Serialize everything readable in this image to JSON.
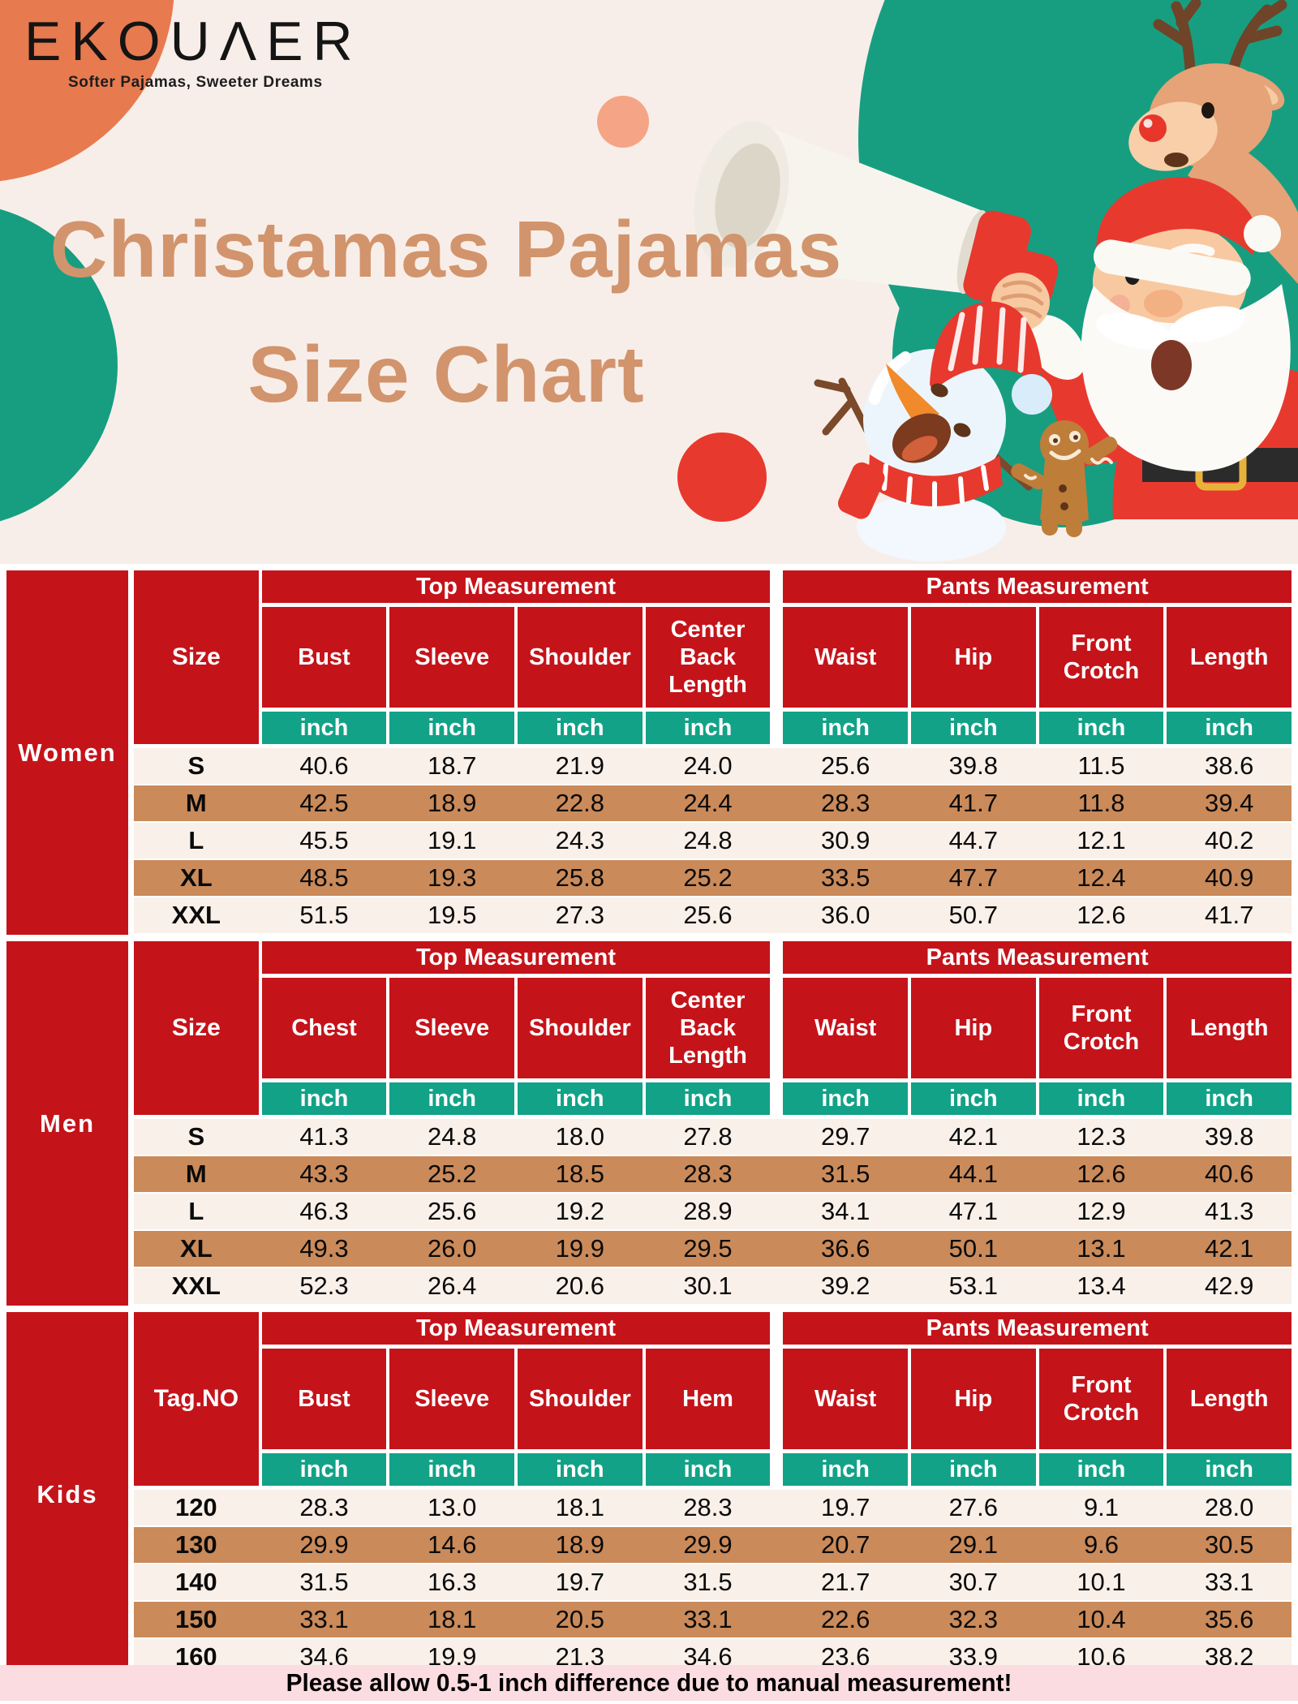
{
  "brand": {
    "logo": "EKOUΛER",
    "tagline": "Softer Pajamas, Sweeter Dreams"
  },
  "title": {
    "line1": "Christamas Pajamas",
    "line2": "Size Chart"
  },
  "header": {
    "illustrations": [
      "green-circle",
      "orange-circle",
      "green-half-circle",
      "peach-circle",
      "red-ball",
      "reindeer",
      "megaphone",
      "santa-claus",
      "snowman",
      "gingerbread-man"
    ]
  },
  "table": {
    "top_group_label": "Top Measurement",
    "pants_group_label": "Pants Measurement",
    "unit": "inch",
    "sections": [
      {
        "group": "Women",
        "size_header": "Size",
        "columns": [
          "Bust",
          "Sleeve",
          "Shoulder",
          "Center Back Length",
          "Waist",
          "Hip",
          "Front Crotch",
          "Length"
        ],
        "rows": [
          {
            "size": "S",
            "values": [
              "40.6",
              "18.7",
              "21.9",
              "24.0",
              "25.6",
              "39.8",
              "11.5",
              "38.6"
            ]
          },
          {
            "size": "M",
            "values": [
              "42.5",
              "18.9",
              "22.8",
              "24.4",
              "28.3",
              "41.7",
              "11.8",
              "39.4"
            ]
          },
          {
            "size": "L",
            "values": [
              "45.5",
              "19.1",
              "24.3",
              "24.8",
              "30.9",
              "44.7",
              "12.1",
              "40.2"
            ]
          },
          {
            "size": "XL",
            "values": [
              "48.5",
              "19.3",
              "25.8",
              "25.2",
              "33.5",
              "47.7",
              "12.4",
              "40.9"
            ]
          },
          {
            "size": "XXL",
            "values": [
              "51.5",
              "19.5",
              "27.3",
              "25.6",
              "36.0",
              "50.7",
              "12.6",
              "41.7"
            ]
          }
        ]
      },
      {
        "group": "Men",
        "size_header": "Size",
        "columns": [
          "Chest",
          "Sleeve",
          "Shoulder",
          "Center Back Length",
          "Waist",
          "Hip",
          "Front Crotch",
          "Length"
        ],
        "rows": [
          {
            "size": "S",
            "values": [
              "41.3",
              "24.8",
              "18.0",
              "27.8",
              "29.7",
              "42.1",
              "12.3",
              "39.8"
            ]
          },
          {
            "size": "M",
            "values": [
              "43.3",
              "25.2",
              "18.5",
              "28.3",
              "31.5",
              "44.1",
              "12.6",
              "40.6"
            ]
          },
          {
            "size": "L",
            "values": [
              "46.3",
              "25.6",
              "19.2",
              "28.9",
              "34.1",
              "47.1",
              "12.9",
              "41.3"
            ]
          },
          {
            "size": "XL",
            "values": [
              "49.3",
              "26.0",
              "19.9",
              "29.5",
              "36.6",
              "50.1",
              "13.1",
              "42.1"
            ]
          },
          {
            "size": "XXL",
            "values": [
              "52.3",
              "26.4",
              "20.6",
              "30.1",
              "39.2",
              "53.1",
              "13.4",
              "42.9"
            ]
          }
        ]
      },
      {
        "group": "Kids",
        "size_header": "Tag.NO",
        "columns": [
          "Bust",
          "Sleeve",
          "Shoulder",
          "Hem",
          "Waist",
          "Hip",
          "Front Crotch",
          "Length"
        ],
        "rows": [
          {
            "size": "120",
            "values": [
              "28.3",
              "13.0",
              "18.1",
              "28.3",
              "19.7",
              "27.6",
              "9.1",
              "28.0"
            ]
          },
          {
            "size": "130",
            "values": [
              "29.9",
              "14.6",
              "18.9",
              "29.9",
              "20.7",
              "29.1",
              "9.6",
              "30.5"
            ]
          },
          {
            "size": "140",
            "values": [
              "31.5",
              "16.3",
              "19.7",
              "31.5",
              "21.7",
              "30.7",
              "10.1",
              "33.1"
            ]
          },
          {
            "size": "150",
            "values": [
              "33.1",
              "18.1",
              "20.5",
              "33.1",
              "22.6",
              "32.3",
              "10.4",
              "35.6"
            ]
          },
          {
            "size": "160",
            "values": [
              "34.6",
              "19.9",
              "21.3",
              "34.6",
              "23.6",
              "33.9",
              "10.6",
              "38.2"
            ]
          }
        ]
      }
    ]
  },
  "note": {
    "text": "Please allow 0.5-1 inch difference due to manual measurement!"
  },
  "colors": {
    "tableRed": "#c5131a",
    "inchGreen": "#12a287",
    "circleGreen": "#179e81",
    "santaRed": "#e8392e",
    "rowTan": "#ca8a5a",
    "rowLight": "#f9f0e9",
    "cream": "#f8eee9",
    "notePink": "#fbdce1",
    "titleTan": "#d2946c",
    "orange": "#e87a4f",
    "peach": "#f5a585"
  }
}
